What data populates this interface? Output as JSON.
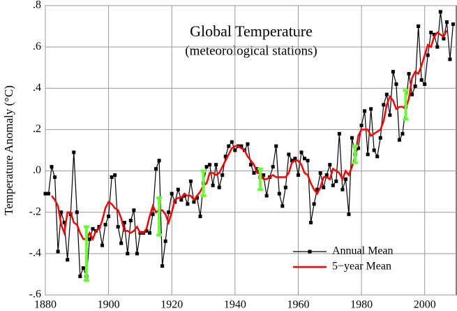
{
  "chart_data": {
    "type": "line",
    "title": "Global Temperature",
    "subtitle": "(meteorological stations)",
    "y_label": "Temperature Anomaly (°C)",
    "xlim": [
      1880,
      2010
    ],
    "ylim": [
      -0.6,
      0.8
    ],
    "xticks": [
      1880,
      1900,
      1920,
      1940,
      1960,
      1980,
      2000
    ],
    "yticks": [
      {
        "value": -0.6,
        "label": "-.6"
      },
      {
        "value": -0.4,
        "label": "-.4"
      },
      {
        "value": -0.2,
        "label": "-.2"
      },
      {
        "value": 0,
        "label": ".0"
      },
      {
        "value": 0.2,
        "label": ".2"
      },
      {
        "value": 0.4,
        "label": ".4"
      },
      {
        "value": 0.6,
        "label": ".6"
      },
      {
        "value": 0.8,
        "label": ".8"
      }
    ],
    "grid": true,
    "legend": "lower right",
    "series": [
      {
        "name": "Annual Mean",
        "color": "#000000",
        "marker": "square",
        "x": [
          1880,
          1881,
          1882,
          1883,
          1884,
          1885,
          1886,
          1887,
          1888,
          1889,
          1890,
          1891,
          1892,
          1893,
          1894,
          1895,
          1896,
          1897,
          1898,
          1899,
          1900,
          1901,
          1902,
          1903,
          1904,
          1905,
          1906,
          1907,
          1908,
          1909,
          1910,
          1911,
          1912,
          1913,
          1914,
          1915,
          1916,
          1917,
          1918,
          1919,
          1920,
          1921,
          1922,
          1923,
          1924,
          1925,
          1926,
          1927,
          1928,
          1929,
          1930,
          1931,
          1932,
          1933,
          1934,
          1935,
          1936,
          1937,
          1938,
          1939,
          1940,
          1941,
          1942,
          1943,
          1944,
          1945,
          1946,
          1947,
          1948,
          1949,
          1950,
          1951,
          1952,
          1953,
          1954,
          1955,
          1956,
          1957,
          1958,
          1959,
          1960,
          1961,
          1962,
          1963,
          1964,
          1965,
          1966,
          1967,
          1968,
          1969,
          1970,
          1971,
          1972,
          1973,
          1974,
          1975,
          1976,
          1977,
          1978,
          1979,
          1980,
          1981,
          1982,
          1983,
          1984,
          1985,
          1986,
          1987,
          1988,
          1989,
          1990,
          1991,
          1992,
          1993,
          1994,
          1995,
          1996,
          1997,
          1998,
          1999,
          2000,
          2001,
          2002,
          2003,
          2004,
          2005,
          2006,
          2007,
          2008,
          2009
        ],
        "values": [
          -0.11,
          -0.11,
          0.02,
          -0.03,
          -0.39,
          -0.2,
          -0.25,
          -0.43,
          -0.21,
          0.09,
          -0.2,
          -0.51,
          -0.47,
          -0.51,
          -0.33,
          -0.28,
          -0.29,
          -0.27,
          -0.36,
          -0.26,
          -0.22,
          -0.03,
          -0.02,
          -0.27,
          -0.35,
          -0.25,
          -0.4,
          -0.24,
          -0.19,
          -0.4,
          -0.3,
          -0.3,
          -0.29,
          -0.3,
          -0.21,
          0.01,
          0.05,
          -0.46,
          -0.34,
          -0.2,
          -0.11,
          -0.15,
          -0.09,
          -0.14,
          -0.12,
          -0.16,
          -0.05,
          -0.15,
          -0.13,
          -0.22,
          -0.06,
          0.02,
          0.03,
          -0.07,
          0.03,
          -0.08,
          -0.02,
          0.07,
          0.12,
          0.14,
          0.1,
          0.12,
          0.12,
          0.1,
          0.13,
          0.03,
          -0.01,
          0.01,
          -0.03,
          -0.02,
          -0.12,
          -0.03,
          0.02,
          0.12,
          -0.11,
          -0.17,
          -0.08,
          0.08,
          0.05,
          0.06,
          -0.02,
          0.09,
          0.06,
          0.05,
          -0.25,
          -0.16,
          -0.09,
          -0.01,
          -0.08,
          -0.02,
          0.03,
          -0.07,
          -0.05,
          0.18,
          -0.09,
          -0.04,
          -0.21,
          0.16,
          0.08,
          0.11,
          0.22,
          0.29,
          0.08,
          0.3,
          0.1,
          0.07,
          0.16,
          0.32,
          0.37,
          0.27,
          0.48,
          0.42,
          0.15,
          0.18,
          0.31,
          0.47,
          0.37,
          0.41,
          0.7,
          0.44,
          0.42,
          0.56,
          0.67,
          0.66,
          0.6,
          0.77,
          0.64,
          0.72,
          0.54,
          0.71
        ]
      },
      {
        "name": "5−year Mean",
        "color": "#ff0000",
        "x": [
          1882,
          1883,
          1884,
          1885,
          1886,
          1887,
          1888,
          1889,
          1890,
          1891,
          1892,
          1893,
          1894,
          1895,
          1896,
          1897,
          1898,
          1899,
          1900,
          1901,
          1902,
          1903,
          1904,
          1905,
          1906,
          1907,
          1908,
          1909,
          1910,
          1911,
          1912,
          1913,
          1914,
          1915,
          1916,
          1917,
          1918,
          1919,
          1920,
          1921,
          1922,
          1923,
          1924,
          1925,
          1926,
          1927,
          1928,
          1929,
          1930,
          1931,
          1932,
          1933,
          1934,
          1935,
          1936,
          1937,
          1938,
          1939,
          1940,
          1941,
          1942,
          1943,
          1944,
          1945,
          1946,
          1947,
          1948,
          1949,
          1950,
          1951,
          1952,
          1953,
          1954,
          1955,
          1956,
          1957,
          1958,
          1959,
          1960,
          1961,
          1962,
          1963,
          1964,
          1965,
          1966,
          1967,
          1968,
          1969,
          1970,
          1971,
          1972,
          1973,
          1974,
          1975,
          1976,
          1977,
          1978,
          1979,
          1980,
          1981,
          1982,
          1983,
          1984,
          1985,
          1986,
          1987,
          1988,
          1989,
          1990,
          1991,
          1992,
          1993,
          1994,
          1995,
          1996,
          1997,
          1998,
          1999,
          2000,
          2001,
          2002,
          2003,
          2004,
          2005,
          2006,
          2007
        ],
        "values": [
          -0.12,
          -0.14,
          -0.17,
          -0.26,
          -0.3,
          -0.2,
          -0.2,
          -0.25,
          -0.26,
          -0.3,
          -0.33,
          -0.33,
          -0.3,
          -0.33,
          -0.29,
          -0.28,
          -0.24,
          -0.18,
          -0.15,
          -0.16,
          -0.18,
          -0.19,
          -0.23,
          -0.29,
          -0.29,
          -0.3,
          -0.29,
          -0.27,
          -0.3,
          -0.3,
          -0.28,
          -0.22,
          -0.17,
          -0.2,
          -0.19,
          -0.19,
          -0.21,
          -0.25,
          -0.2,
          -0.14,
          -0.13,
          -0.13,
          -0.11,
          -0.12,
          -0.12,
          -0.14,
          -0.12,
          -0.1,
          -0.07,
          -0.06,
          -0.01,
          -0.01,
          -0.02,
          -0.01,
          0.02,
          0.05,
          0.08,
          0.11,
          0.12,
          0.12,
          0.11,
          0.1,
          0.07,
          0.05,
          0.03,
          -0.01,
          -0.01,
          -0.04,
          -0.04,
          -0.03,
          -0.02,
          -0.03,
          -0.03,
          -0.03,
          -0.03,
          -0.01,
          0.04,
          0.05,
          0.05,
          0.03,
          -0.01,
          -0.02,
          -0.06,
          -0.09,
          -0.11,
          -0.08,
          -0.03,
          -0.03,
          -0.04,
          0.01,
          0.0,
          -0.01,
          -0.04,
          0.0,
          -0.02,
          0.02,
          0.07,
          0.17,
          0.2,
          0.2,
          0.2,
          0.17,
          0.18,
          0.19,
          0.2,
          0.24,
          0.32,
          0.36,
          0.34,
          0.3,
          0.31,
          0.31,
          0.3,
          0.35,
          0.45,
          0.48,
          0.47,
          0.51,
          0.56,
          0.61,
          0.6,
          0.65,
          0.67,
          0.66,
          0.65,
          0.68
        ]
      }
    ],
    "error_bars": {
      "color": "#66ff33",
      "x": [
        1893,
        1916,
        1930,
        1948,
        1978,
        1994
      ],
      "values": [
        -0.4,
        -0.22,
        -0.06,
        -0.04,
        0.08,
        0.32
      ],
      "errors": [
        0.13,
        0.09,
        0.06,
        0.05,
        0.04,
        0.07
      ]
    }
  }
}
